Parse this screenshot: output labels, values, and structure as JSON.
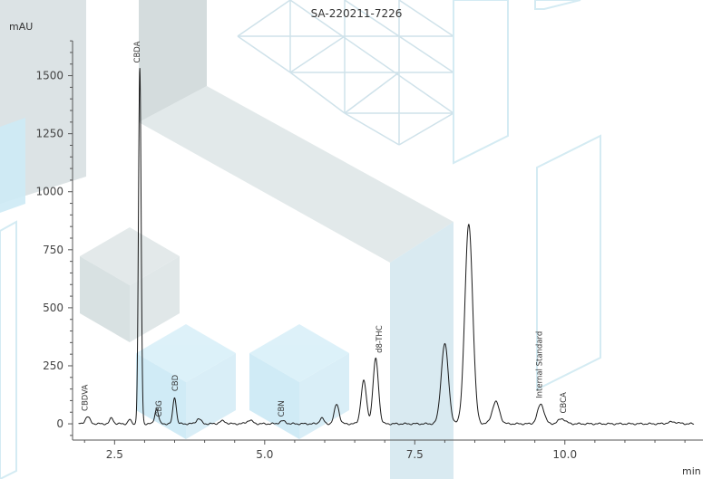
{
  "colors": {
    "trace": "#1a1a1a",
    "axis": "#555555",
    "bg_panel_gray": "#c5d2d4",
    "bg_panel_blue": "#cdeaf5",
    "bg_outline": "#cfe6ef"
  },
  "chart_data": {
    "type": "line",
    "title": "SA-220211-7226",
    "xlabel": "min",
    "ylabel": "mAU",
    "xlim": [
      1.8,
      12.3
    ],
    "ylim": [
      -70,
      1670
    ],
    "x_ticks": [
      2.5,
      5.0,
      7.5,
      10.0
    ],
    "x_tick_labels": [
      "2.5",
      "5.0",
      "7.5",
      "10.0"
    ],
    "y_ticks": [
      0,
      250,
      500,
      750,
      1000,
      1250,
      1500
    ],
    "y_tick_labels": [
      "0",
      "250",
      "500",
      "750",
      "1000",
      "1250",
      "1500"
    ],
    "grid": false,
    "baseline": 0,
    "peaks": [
      {
        "x": 2.05,
        "height": 30,
        "width": 0.04
      },
      {
        "x": 2.45,
        "height": 25,
        "width": 0.03
      },
      {
        "x": 2.75,
        "height": 18,
        "width": 0.025
      },
      {
        "x": 2.92,
        "height": 1530,
        "width": 0.022
      },
      {
        "x": 3.2,
        "height": 65,
        "width": 0.03
      },
      {
        "x": 3.5,
        "height": 115,
        "width": 0.028
      },
      {
        "x": 3.9,
        "height": 22,
        "width": 0.04
      },
      {
        "x": 4.3,
        "height": 12,
        "width": 0.05
      },
      {
        "x": 4.75,
        "height": 15,
        "width": 0.05
      },
      {
        "x": 5.3,
        "height": 12,
        "width": 0.05
      },
      {
        "x": 5.95,
        "height": 25,
        "width": 0.035
      },
      {
        "x": 6.2,
        "height": 85,
        "width": 0.04
      },
      {
        "x": 6.65,
        "height": 185,
        "width": 0.045
      },
      {
        "x": 6.85,
        "height": 280,
        "width": 0.045
      },
      {
        "x": 8.0,
        "height": 345,
        "width": 0.06
      },
      {
        "x": 8.4,
        "height": 860,
        "width": 0.065
      },
      {
        "x": 8.85,
        "height": 95,
        "width": 0.06
      },
      {
        "x": 9.6,
        "height": 85,
        "width": 0.055
      },
      {
        "x": 9.95,
        "height": 22,
        "width": 0.06
      },
      {
        "x": 11.8,
        "height": 8,
        "width": 0.08
      }
    ],
    "annotations": [
      {
        "text": "CBDVA",
        "x": 2.05,
        "y": 55
      },
      {
        "text": "CBDA",
        "x": 2.92,
        "y": 1555
      },
      {
        "text": "CBG",
        "x": 3.28,
        "y": 30
      },
      {
        "text": "CBD",
        "x": 3.55,
        "y": 140
      },
      {
        "text": "CBN",
        "x": 5.32,
        "y": 30
      },
      {
        "text": "d8-THC",
        "x": 6.95,
        "y": 305
      },
      {
        "text": "Internal Standard",
        "x": 9.62,
        "y": 110
      },
      {
        "text": "CBCA",
        "x": 10.02,
        "y": 45
      }
    ]
  }
}
